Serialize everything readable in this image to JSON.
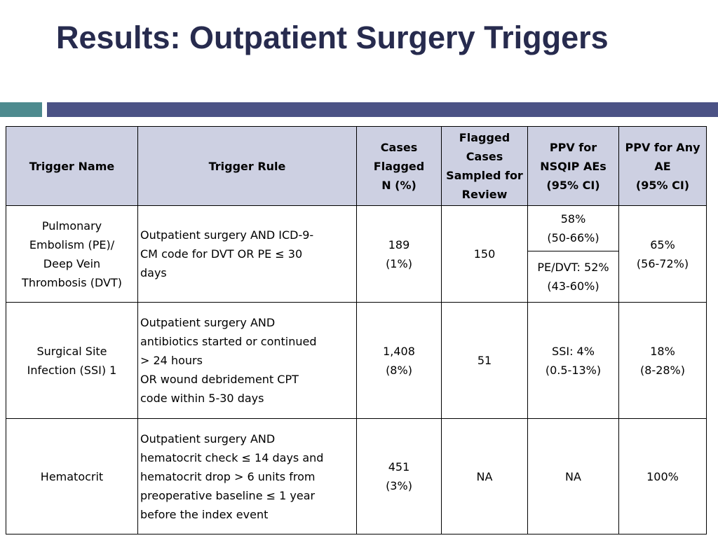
{
  "slide": {
    "title": "Results: Outpatient Surgery Triggers"
  },
  "table": {
    "headers": [
      "Trigger Name",
      "Trigger Rule",
      "Cases\nFlagged\nN (%)",
      "Flagged\nCases\nSampled for\nReview",
      "PPV for\nNSQIP AEs\n(95% CI)",
      "PPV for Any\nAE\n(95% CI)"
    ],
    "rows": [
      {
        "name": "Pulmonary\nEmbolism (PE)/\nDeep Vein\nThrombosis (DVT)",
        "rule": "Outpatient surgery AND ICD-9-\nCM code for DVT OR PE ≤ 30\ndays",
        "cases": "189\n(1%)",
        "sampled": "150",
        "ppv_nsqip": "58%\n(50-66%)",
        "ppv_nsqip_2": "PE/DVT: 52%\n(43-60%)",
        "ppv_any": "65%\n(56-72%)"
      },
      {
        "name": "Surgical Site\nInfection (SSI) 1",
        "rule": "Outpatient surgery AND\nantibiotics started or continued\n> 24 hours\nOR wound debridement CPT\ncode within 5-30 days",
        "cases": "1,408\n(8%)",
        "sampled": "51",
        "ppv_nsqip": "SSI: 4%\n(0.5-13%)",
        "ppv_any": "18%\n(8-28%)"
      },
      {
        "name": "Hematocrit",
        "rule": "Outpatient surgery AND\nhematocrit check ≤ 14 days and\nhematocrit drop > 6 units from\npreoperative baseline ≤ 1 year\nbefore the index event",
        "cases": "451\n(3%)",
        "sampled": "NA",
        "ppv_nsqip": "NA",
        "ppv_any": "100%"
      }
    ]
  },
  "colors": {
    "title": "#272b4e",
    "bar_teal": "#4d8a8e",
    "bar_navy": "#4b5285",
    "header_fill": "#cdd0e2"
  }
}
